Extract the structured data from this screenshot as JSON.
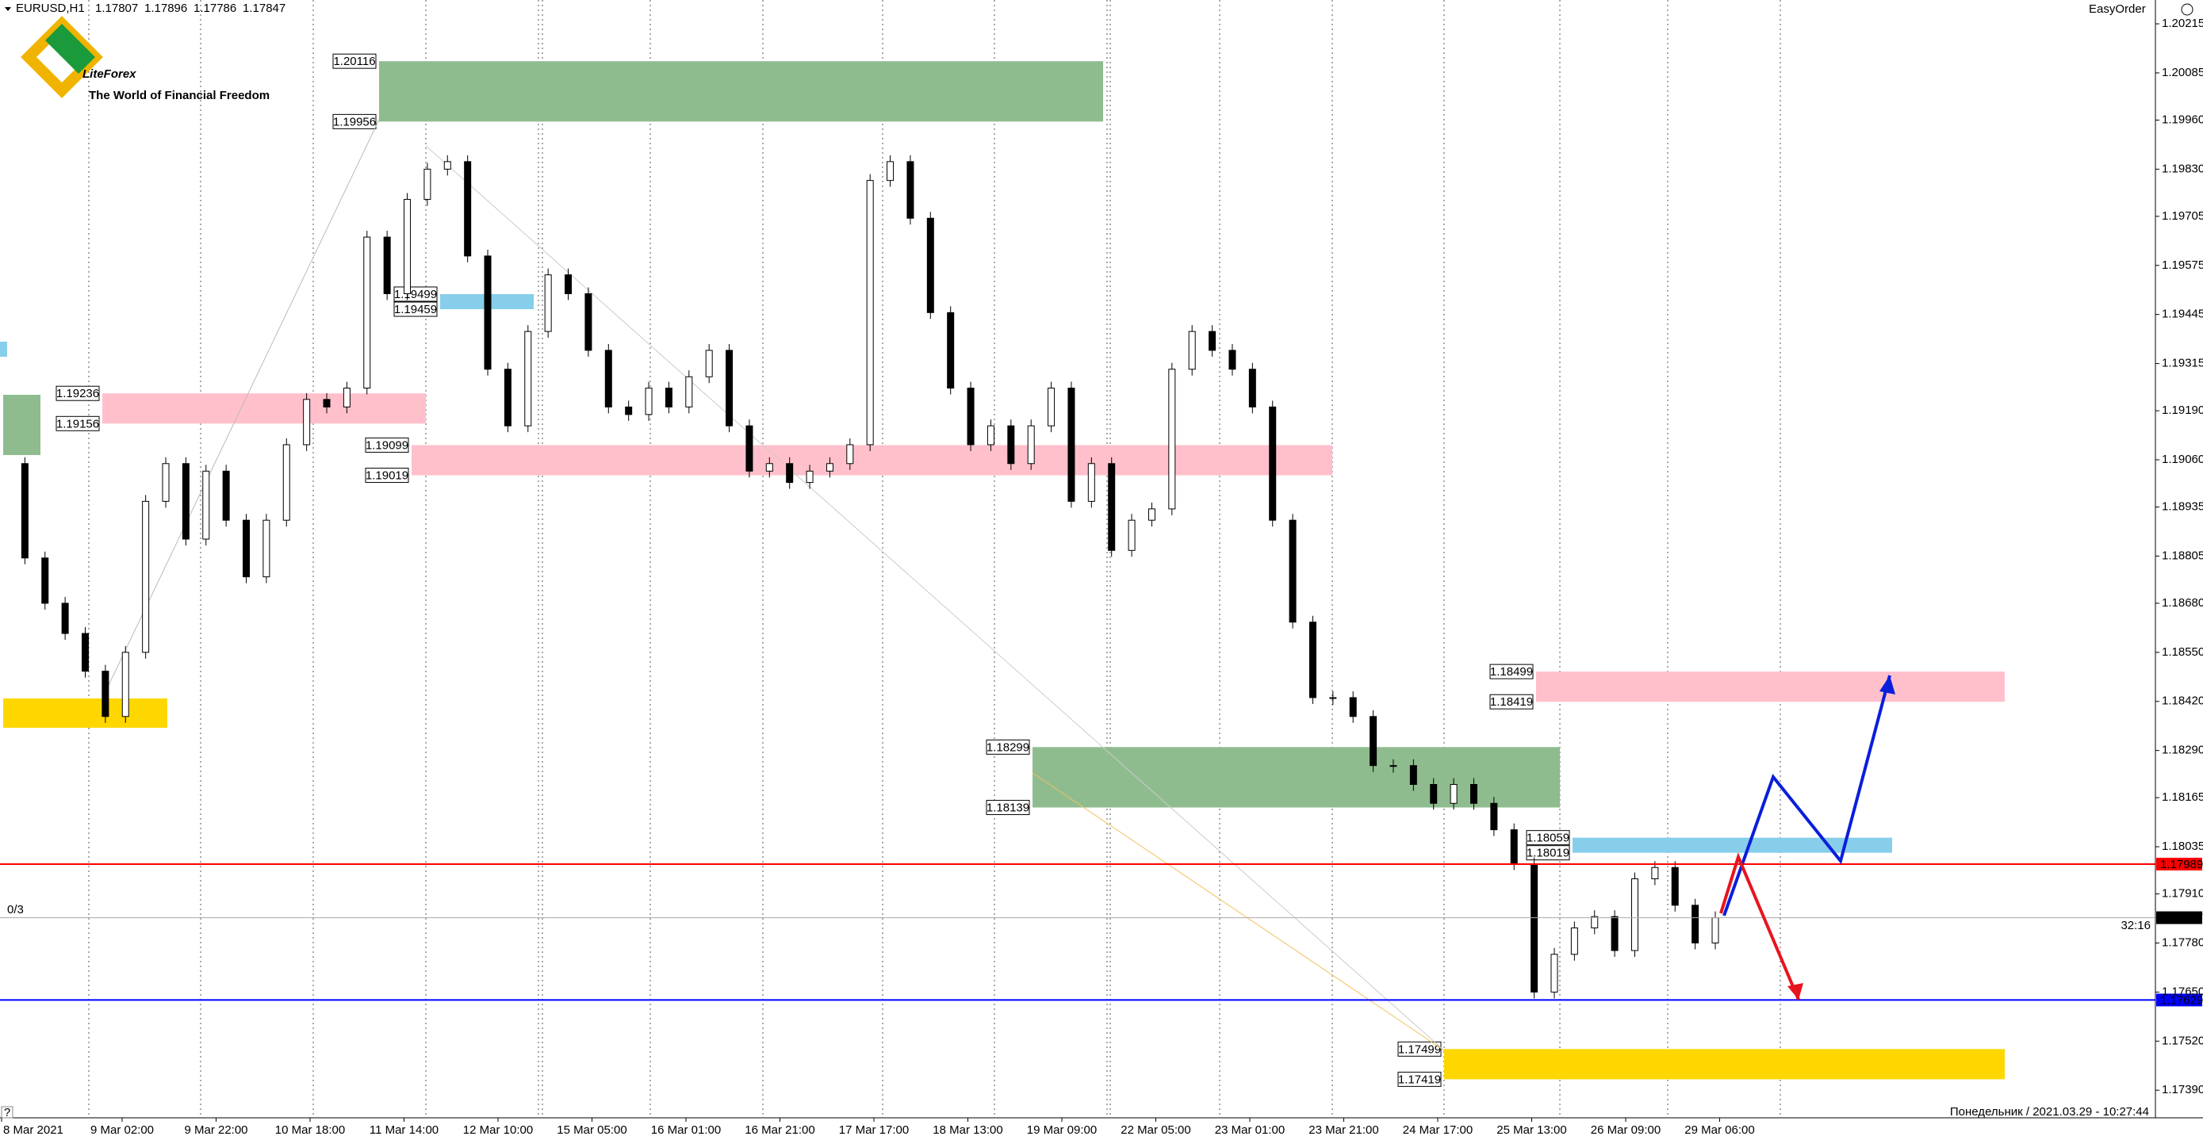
{
  "header": {
    "symbol": "EURUSD,H1",
    "ohlc": [
      1.17807,
      1.17896,
      1.17786,
      1.17847
    ],
    "plugin": "EasyOrder"
  },
  "logo": {
    "name": "LiteForex",
    "tagline": "The World of Financial Freedom"
  },
  "chart_data": {
    "type": "candlestick",
    "values": [
      1.1905,
      1.188,
      1.1868,
      1.186,
      1.185,
      1.1838,
      1.1855,
      1.1895,
      1.1905,
      1.1885,
      1.1903,
      1.189,
      1.1875,
      1.189,
      1.191,
      1.1922,
      1.192,
      1.1925,
      1.1965,
      1.195,
      1.1975,
      1.1983,
      1.1985,
      1.196,
      1.193,
      1.1915,
      1.194,
      1.1955,
      1.195,
      1.1935,
      1.192,
      1.1918,
      1.1925,
      1.192,
      1.1928,
      1.1935,
      1.1915,
      1.1903,
      1.1905,
      1.19,
      1.1903,
      1.1905,
      1.191,
      1.198,
      1.1985,
      1.197,
      1.1945,
      1.1925,
      1.191,
      1.1915,
      1.1905,
      1.1915,
      1.1925,
      1.1895,
      1.1905,
      1.1882,
      1.189,
      1.1893,
      1.193,
      1.194,
      1.1935,
      1.193,
      1.192,
      1.189,
      1.1863,
      1.1843,
      1.1843,
      1.1838,
      1.1825,
      1.1825,
      1.182,
      1.1815,
      1.182,
      1.1815,
      1.1808,
      1.1799,
      1.1765,
      1.1775,
      1.1782,
      1.1785,
      1.1776,
      1.1795,
      1.1798,
      1.1788,
      1.1778,
      1.17847
    ],
    "up_color": "#ffffff",
    "down_color": "#000000",
    "ylim": [
      1.17319,
      1.20234
    ],
    "yticks": [
      1.20215,
      1.20085,
      {
        "value": 1.1996,
        "label": "1.19960"
      },
      {
        "value": 1.1983,
        "label": "1.19830"
      },
      1.19705,
      1.19575,
      1.19445,
      1.19315,
      {
        "value": 1.1919,
        "label": "1.19190"
      },
      {
        "value": 1.1906,
        "label": "1.19060"
      },
      1.18935,
      1.18805,
      {
        "value": 1.1868,
        "label": "1.18680"
      },
      {
        "value": 1.1855,
        "label": "1.18550"
      },
      {
        "value": 1.1842,
        "label": "1.18420"
      },
      {
        "value": 1.1829,
        "label": "1.18290"
      },
      1.18165,
      1.18035,
      {
        "value": 1.1791,
        "label": "1.17910"
      },
      {
        "value": 1.1778,
        "label": "1.17780"
      },
      {
        "value": 1.1765,
        "label": "1.17650"
      },
      {
        "value": 1.1752,
        "label": "1.17520"
      },
      {
        "value": 1.1739,
        "label": "1.17390"
      }
    ],
    "time_labels": [
      "8 Mar 2021",
      "9 Mar 02:00",
      "9 Mar 22:00",
      "10 Mar 18:00",
      "11 Mar 14:00",
      "12 Mar 10:00",
      "15 Mar 05:00",
      "16 Mar 01:00",
      "16 Mar 21:00",
      "17 Mar 17:00",
      "18 Mar 13:00",
      "19 Mar 09:00",
      "22 Mar 05:00",
      "23 Mar 01:00",
      "23 Mar 21:00",
      "24 Mar 17:00",
      "25 Mar 13:00",
      "26 Mar 09:00",
      "29 Mar 06:00"
    ],
    "zones": [
      {
        "top": 1.20116,
        "bottom": 1.19956,
        "color": "#8fbc8f"
      },
      {
        "top": 1.19499,
        "bottom": 1.19459,
        "color": "#87ceeb"
      },
      {
        "top": 1.19236,
        "bottom": 1.19156,
        "color": "#ffc0cb"
      },
      {
        "top": 1.19099,
        "bottom": 1.19019,
        "color": "#ffc0cb"
      },
      {
        "top": 1.18299,
        "bottom": 1.18139,
        "color": "#8fbc8f"
      },
      {
        "top": 1.18499,
        "bottom": 1.18419,
        "color": "#ffc0cb"
      },
      {
        "top": 1.18059,
        "bottom": 1.18019,
        "color": "#87ceeb"
      },
      {
        "top": 1.17499,
        "bottom": 1.17419,
        "color": "#ffd700"
      }
    ],
    "levels": [
      {
        "price": 1.17989,
        "color": "#ff0000"
      },
      {
        "price": 1.17629,
        "color": "#0000ff"
      }
    ],
    "current_price": 1.17847,
    "countdown": "32:16",
    "order_counter": "0/3"
  },
  "status": {
    "datetime": "Понедельник  /  2021.03.29  -  10:27:44",
    "help": "?"
  }
}
